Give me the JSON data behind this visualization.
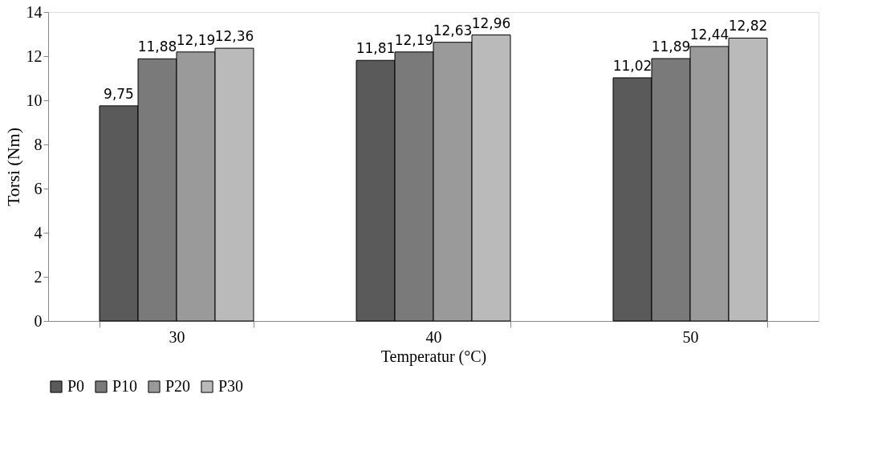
{
  "chart_data": {
    "type": "bar",
    "xlabel": "Temperatur (°C)",
    "ylabel": "Torsi (Nm)",
    "categories": [
      "30",
      "40",
      "50"
    ],
    "series": [
      {
        "name": "P0",
        "color": "#5a5a5a",
        "values": [
          9.75,
          11.81,
          11.02
        ],
        "value_labels": [
          "9,75",
          "11,81",
          "11,02"
        ]
      },
      {
        "name": "P10",
        "color": "#7a7a7a",
        "values": [
          11.88,
          12.19,
          11.89
        ],
        "value_labels": [
          "11,88",
          "12,19",
          "11,89"
        ]
      },
      {
        "name": "P20",
        "color": "#9a9a9a",
        "values": [
          12.19,
          12.63,
          12.44
        ],
        "value_labels": [
          "12,19",
          "12,63",
          "12,44"
        ]
      },
      {
        "name": "P30",
        "color": "#bababa",
        "values": [
          12.36,
          12.96,
          12.82
        ],
        "value_labels": [
          "12,36",
          "12,96",
          "12,82"
        ]
      }
    ],
    "ylim": [
      0,
      14
    ],
    "yticks": [
      0,
      2,
      4,
      6,
      8,
      10,
      12,
      14
    ],
    "grid": false,
    "legend": "bottom"
  }
}
